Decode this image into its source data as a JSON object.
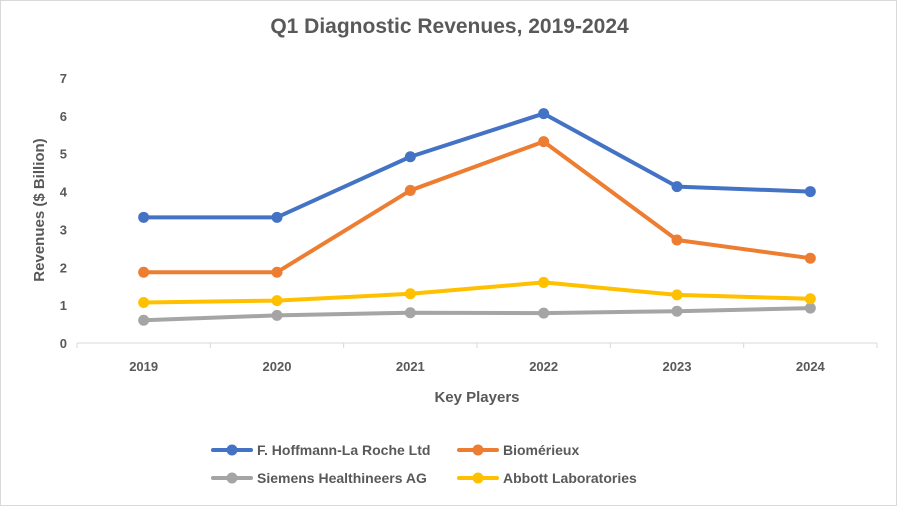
{
  "chart_data": {
    "type": "line",
    "title": "Q1 Diagnostic Revenues, 2019-2024",
    "xlabel": "Key Players",
    "ylabel": "Revenues ($ Billion)",
    "categories": [
      "2019",
      "2020",
      "2021",
      "2022",
      "2023",
      "2024"
    ],
    "ylim": [
      0,
      7
    ],
    "yticks": [
      "0",
      "1",
      "2",
      "3",
      "4",
      "5",
      "6",
      "7"
    ],
    "grid": false,
    "legend_position": "bottom",
    "series": [
      {
        "name": "F. Hoffmann-La Roche Ltd",
        "color": "#4472c4",
        "values": [
          3.32,
          3.32,
          4.92,
          6.06,
          4.13,
          4.0
        ]
      },
      {
        "name": "Biomérieux",
        "color": "#ed7d31",
        "values": [
          1.87,
          1.87,
          4.03,
          5.32,
          2.72,
          2.24
        ]
      },
      {
        "name": "Siemens Healthineers AG",
        "color": "#a5a5a5",
        "values": [
          0.6,
          0.73,
          0.8,
          0.79,
          0.84,
          0.92
        ]
      },
      {
        "name": "Abbott Laboratories",
        "color": "#ffc000",
        "values": [
          1.07,
          1.12,
          1.3,
          1.6,
          1.27,
          1.17
        ]
      }
    ]
  }
}
